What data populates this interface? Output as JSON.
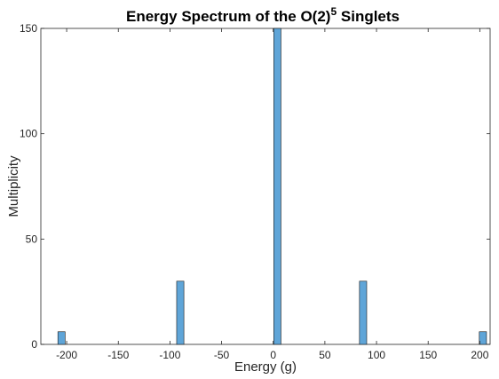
{
  "chart_data": {
    "type": "bar",
    "title": "Energy Spectrum of the O(2)",
    "title_superscript": "5",
    "title_suffix": " Singlets",
    "xlabel": "Energy (g)",
    "ylabel": "Multiplicity",
    "xlim": [
      -225,
      210
    ],
    "ylim": [
      0,
      150
    ],
    "xticks": [
      -200,
      -150,
      -100,
      -50,
      0,
      50,
      100,
      150,
      200
    ],
    "yticks": [
      0,
      50,
      100,
      150
    ],
    "bin_width": 7,
    "bars": [
      {
        "x": -205,
        "value": 6
      },
      {
        "x": -90,
        "value": 30
      },
      {
        "x": 4,
        "value": 150
      },
      {
        "x": 87,
        "value": 30
      },
      {
        "x": 203,
        "value": 6
      }
    ],
    "bar_color": "#5fa5d8",
    "bar_edge_color": "#1a1a1a",
    "grid": false,
    "box": true
  }
}
